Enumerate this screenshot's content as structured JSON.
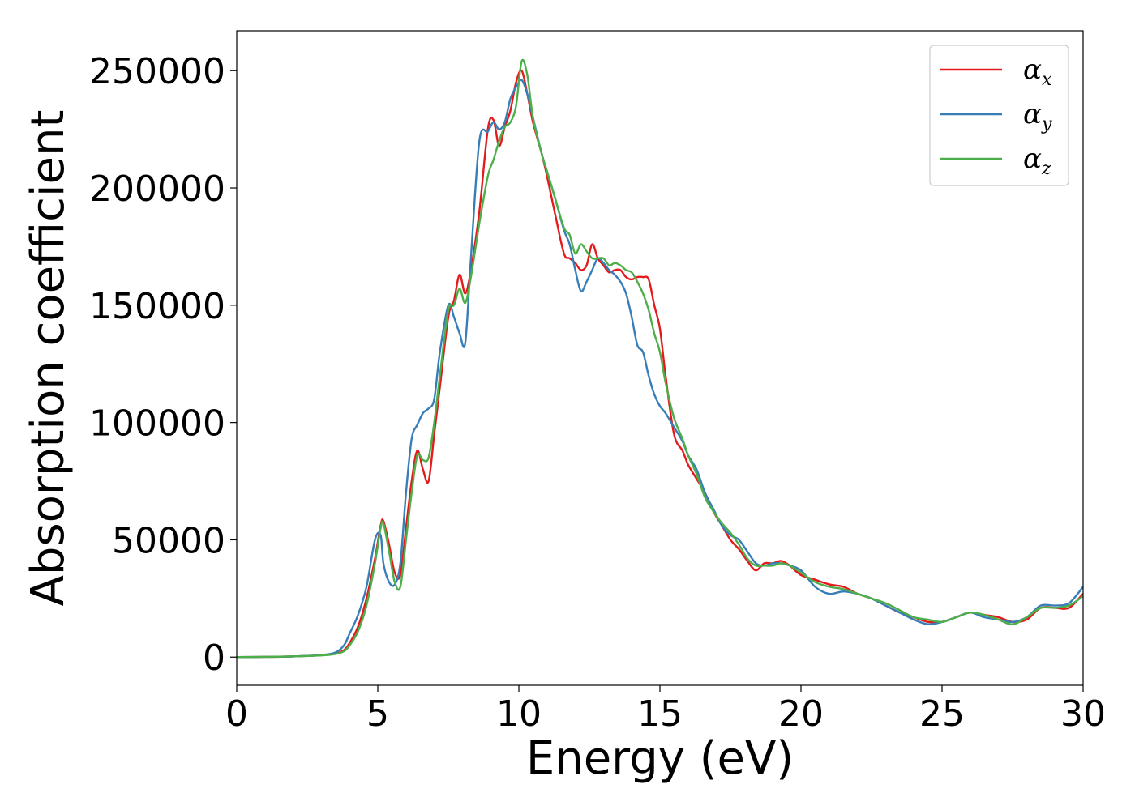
{
  "chart_data": {
    "type": "line",
    "title": "",
    "xlabel": "Energy (eV)",
    "ylabel": "Absorption coefficient",
    "xlim": [
      0,
      30
    ],
    "ylim": [
      -12000,
      267000
    ],
    "xticks": [
      0,
      5,
      10,
      15,
      20,
      25,
      30
    ],
    "yticks": [
      0,
      50000,
      100000,
      150000,
      200000,
      250000
    ],
    "grid": false,
    "legend_position": "top-right",
    "series": [
      {
        "name": "α_x",
        "symbol": "α",
        "subscript": "x",
        "color": "#e41a1c",
        "x": [
          0,
          1,
          2,
          3,
          3.5,
          3.8,
          4,
          4.3,
          4.6,
          4.9,
          5.1,
          5.2,
          5.4,
          5.6,
          5.8,
          6,
          6.2,
          6.4,
          6.6,
          6.8,
          7,
          7.2,
          7.5,
          7.7,
          7.9,
          8.1,
          8.3,
          8.6,
          8.9,
          9.1,
          9.3,
          9.5,
          9.7,
          9.9,
          10.1,
          10.3,
          10.5,
          10.8,
          11,
          11.3,
          11.6,
          11.8,
          12,
          12.2,
          12.4,
          12.6,
          12.8,
          13,
          13.2,
          13.4,
          13.6,
          13.8,
          14,
          14.2,
          14.4,
          14.6,
          14.8,
          15,
          15.2,
          15.5,
          15.8,
          16,
          16.3,
          16.6,
          16.9,
          17.2,
          17.5,
          17.8,
          18.1,
          18.4,
          18.7,
          19,
          19.3,
          19.6,
          20,
          20.5,
          21,
          21.5,
          22,
          22.5,
          23,
          23.5,
          24,
          24.5,
          25,
          25.5,
          26,
          26.5,
          27,
          27.5,
          28,
          28.5,
          29,
          29.5,
          30
        ],
        "y": [
          0,
          100,
          300,
          800,
          1500,
          3000,
          6000,
          13000,
          25000,
          42000,
          56000,
          58000,
          48000,
          36000,
          35000,
          55000,
          75000,
          88000,
          80000,
          75000,
          95000,
          115000,
          145000,
          152000,
          163000,
          155000,
          165000,
          190000,
          225000,
          229000,
          218000,
          226000,
          233000,
          245000,
          250000,
          240000,
          228000,
          215000,
          205000,
          188000,
          172000,
          170000,
          168000,
          165000,
          167000,
          176000,
          170000,
          167000,
          164000,
          165000,
          165000,
          162000,
          161000,
          162000,
          162000,
          161000,
          150000,
          140000,
          120000,
          95000,
          88000,
          82000,
          76000,
          70000,
          62000,
          56000,
          50000,
          46000,
          41000,
          37000,
          40000,
          40000,
          41000,
          39000,
          35000,
          33000,
          31000,
          30000,
          27000,
          25000,
          22000,
          19000,
          17000,
          15000,
          15000,
          17000,
          19000,
          18000,
          17000,
          15000,
          16000,
          21000,
          21000,
          21000,
          27000
        ]
      },
      {
        "name": "α_y",
        "symbol": "α",
        "subscript": "y",
        "color": "#377eb8",
        "x": [
          0,
          1,
          2,
          3,
          3.5,
          3.8,
          4,
          4.3,
          4.6,
          4.9,
          5.1,
          5.2,
          5.4,
          5.6,
          5.8,
          6,
          6.2,
          6.4,
          6.6,
          6.8,
          7,
          7.2,
          7.5,
          7.7,
          7.9,
          8.1,
          8.3,
          8.6,
          8.9,
          9.1,
          9.3,
          9.5,
          9.7,
          9.9,
          10.1,
          10.3,
          10.5,
          10.8,
          11,
          11.3,
          11.6,
          11.8,
          12,
          12.2,
          12.4,
          12.6,
          12.8,
          13,
          13.2,
          13.4,
          13.6,
          13.8,
          14,
          14.2,
          14.4,
          14.6,
          14.8,
          15,
          15.2,
          15.5,
          15.8,
          16,
          16.3,
          16.6,
          16.9,
          17.2,
          17.5,
          17.8,
          18.1,
          18.4,
          18.7,
          19,
          19.3,
          19.6,
          20,
          20.5,
          21,
          21.5,
          22,
          22.5,
          23,
          23.5,
          24,
          24.5,
          25,
          25.5,
          26,
          26.5,
          27,
          27.5,
          28,
          28.5,
          29,
          29.5,
          30
        ],
        "y": [
          0,
          100,
          300,
          900,
          2000,
          5000,
          10000,
          18000,
          30000,
          50000,
          52000,
          40000,
          32000,
          31000,
          40000,
          70000,
          93000,
          99000,
          104000,
          106000,
          110000,
          130000,
          150000,
          145000,
          138000,
          134000,
          170000,
          220000,
          224000,
          228000,
          225000,
          228000,
          238000,
          243000,
          246000,
          240000,
          230000,
          215000,
          207000,
          195000,
          182000,
          176000,
          165000,
          156000,
          160000,
          165000,
          170000,
          168000,
          165000,
          163000,
          160000,
          155000,
          145000,
          133000,
          130000,
          120000,
          112000,
          107000,
          104000,
          98000,
          92000,
          86000,
          80000,
          70000,
          63000,
          56000,
          52000,
          50000,
          45000,
          40000,
          39000,
          40000,
          40000,
          39000,
          37000,
          30000,
          27000,
          28000,
          27000,
          25000,
          22000,
          19000,
          16000,
          14000,
          15000,
          17000,
          19000,
          17000,
          16000,
          15000,
          17000,
          22000,
          22000,
          23000,
          30000
        ]
      },
      {
        "name": "α_z",
        "symbol": "α",
        "subscript": "z",
        "color": "#4daf4a",
        "x": [
          0,
          1,
          2,
          3,
          3.5,
          3.8,
          4,
          4.3,
          4.6,
          4.9,
          5.1,
          5.2,
          5.4,
          5.6,
          5.8,
          6,
          6.2,
          6.4,
          6.6,
          6.8,
          7,
          7.2,
          7.5,
          7.7,
          7.9,
          8.1,
          8.3,
          8.6,
          8.9,
          9.1,
          9.3,
          9.5,
          9.7,
          9.9,
          10.1,
          10.3,
          10.5,
          10.8,
          11,
          11.3,
          11.6,
          11.8,
          12,
          12.2,
          12.4,
          12.6,
          12.8,
          13,
          13.2,
          13.4,
          13.6,
          13.8,
          14,
          14.2,
          14.4,
          14.6,
          14.8,
          15,
          15.2,
          15.5,
          15.8,
          16,
          16.3,
          16.6,
          16.9,
          17.2,
          17.5,
          17.8,
          18.1,
          18.4,
          18.7,
          19,
          19.3,
          19.6,
          20,
          20.5,
          21,
          21.5,
          22,
          22.5,
          23,
          23.5,
          24,
          24.5,
          25,
          25.5,
          26,
          26.5,
          27,
          27.5,
          28,
          28.5,
          29,
          29.5,
          30
        ],
        "y": [
          0,
          100,
          300,
          700,
          1300,
          2500,
          5000,
          11000,
          22000,
          40000,
          55000,
          57000,
          45000,
          32000,
          30000,
          50000,
          70000,
          86000,
          84000,
          85000,
          100000,
          120000,
          148000,
          150000,
          157000,
          151000,
          162000,
          185000,
          205000,
          212000,
          220000,
          226000,
          228000,
          235000,
          254000,
          248000,
          230000,
          215000,
          207000,
          195000,
          183000,
          180000,
          172000,
          176000,
          173000,
          170000,
          170000,
          170000,
          167000,
          168000,
          167000,
          165000,
          164000,
          160000,
          155000,
          148000,
          138000,
          130000,
          117000,
          102000,
          93000,
          86000,
          78000,
          68000,
          62000,
          57000,
          53000,
          48000,
          42000,
          39000,
          39000,
          39000,
          40000,
          39000,
          36000,
          32000,
          30000,
          29000,
          27000,
          25000,
          23000,
          20000,
          17000,
          16000,
          15000,
          17000,
          19000,
          18000,
          16000,
          14000,
          17000,
          21000,
          21000,
          22000,
          26000
        ]
      }
    ]
  }
}
